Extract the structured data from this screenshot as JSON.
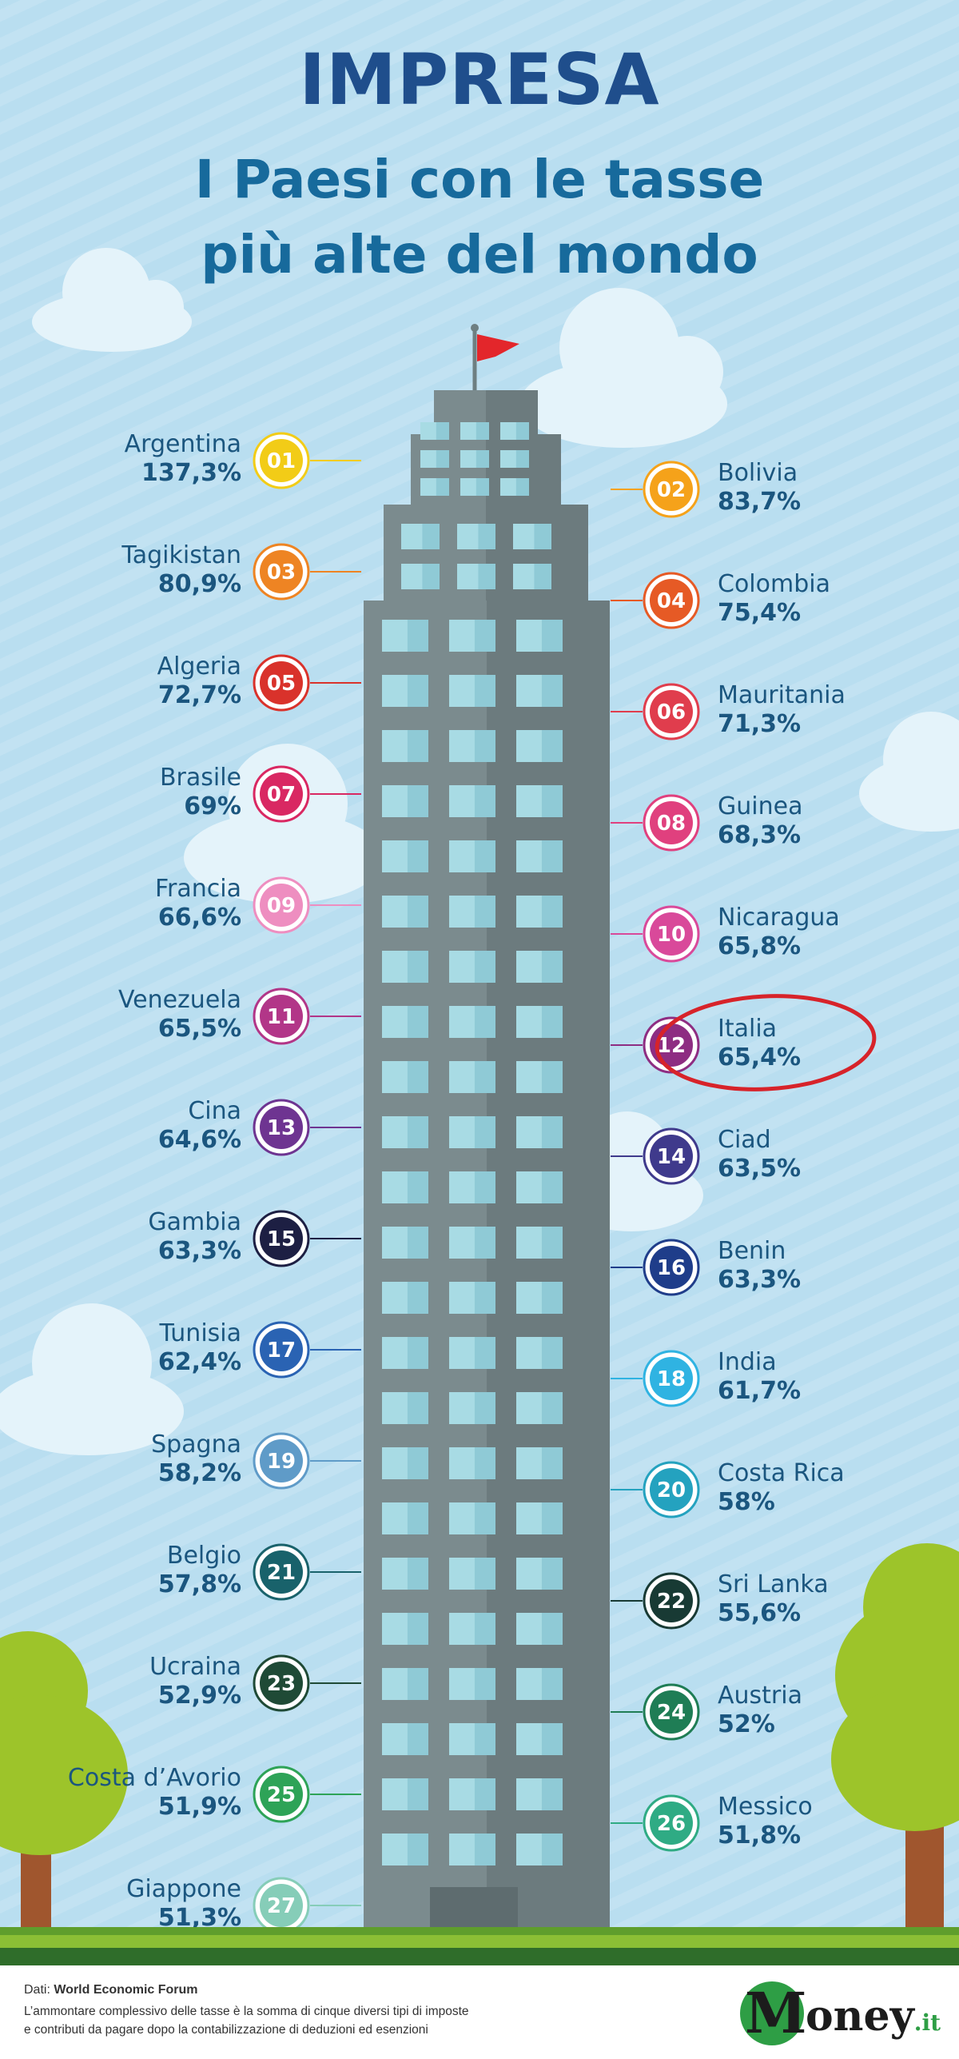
{
  "header": {
    "title": "IMPRESA",
    "subtitle_line1": "I Paesi con le tasse",
    "subtitle_line2": "più alte del mondo"
  },
  "colors": {
    "sky": "#b9def0",
    "title": "#1f4e8c",
    "subtitle": "#176a9c",
    "text": "#1b567f",
    "building": "#7b8b8e",
    "window": "#a8dbe4",
    "highlight_ring": "#d7232a",
    "flag": "#e3262b"
  },
  "chart_data": {
    "type": "table",
    "unit": "%",
    "highlight_rank": 12,
    "rows": [
      {
        "rank": 1,
        "badge": "01",
        "country": "Argentina",
        "value": 137.3,
        "label": "137,3%",
        "color": "#f2cc17"
      },
      {
        "rank": 2,
        "badge": "02",
        "country": "Bolivia",
        "value": 83.7,
        "label": "83,7%",
        "color": "#f5a21a"
      },
      {
        "rank": 3,
        "badge": "03",
        "country": "Tagikistan",
        "value": 80.9,
        "label": "80,9%",
        "color": "#ee8423"
      },
      {
        "rank": 4,
        "badge": "04",
        "country": "Colombia",
        "value": 75.4,
        "label": "75,4%",
        "color": "#e65a25"
      },
      {
        "rank": 5,
        "badge": "05",
        "country": "Algeria",
        "value": 72.7,
        "label": "72,7%",
        "color": "#d9322b"
      },
      {
        "rank": 6,
        "badge": "06",
        "country": "Mauritania",
        "value": 71.3,
        "label": "71,3%",
        "color": "#e03d4d"
      },
      {
        "rank": 7,
        "badge": "07",
        "country": "Brasile",
        "value": 69,
        "label": "69%",
        "color": "#d92862"
      },
      {
        "rank": 8,
        "badge": "08",
        "country": "Guinea",
        "value": 68.3,
        "label": "68,3%",
        "color": "#e0407e"
      },
      {
        "rank": 9,
        "badge": "09",
        "country": "Francia",
        "value": 66.6,
        "label": "66,6%",
        "color": "#ee8ec0"
      },
      {
        "rank": 10,
        "badge": "10",
        "country": "Nicaragua",
        "value": 65.8,
        "label": "65,8%",
        "color": "#d9499a"
      },
      {
        "rank": 11,
        "badge": "11",
        "country": "Venezuela",
        "value": 65.5,
        "label": "65,5%",
        "color": "#b23688"
      },
      {
        "rank": 12,
        "badge": "12",
        "country": "Italia",
        "value": 65.4,
        "label": "65,4%",
        "color": "#8e2d82"
      },
      {
        "rank": 13,
        "badge": "13",
        "country": "Cina",
        "value": 64.6,
        "label": "64,6%",
        "color": "#6e3491"
      },
      {
        "rank": 14,
        "badge": "14",
        "country": "Ciad",
        "value": 63.5,
        "label": "63,5%",
        "color": "#3f3a8c"
      },
      {
        "rank": 15,
        "badge": "15",
        "country": "Gambia",
        "value": 63.3,
        "label": "63,3%",
        "color": "#1d1f43"
      },
      {
        "rank": 16,
        "badge": "16",
        "country": "Benin",
        "value": 63.3,
        "label": "63,3%",
        "color": "#1f3d8a"
      },
      {
        "rank": 17,
        "badge": "17",
        "country": "Tunisia",
        "value": 62.4,
        "label": "62,4%",
        "color": "#2a63b3"
      },
      {
        "rank": 18,
        "badge": "18",
        "country": "India",
        "value": 61.7,
        "label": "61,7%",
        "color": "#2fb3e2"
      },
      {
        "rank": 19,
        "badge": "19",
        "country": "Spagna",
        "value": 58.2,
        "label": "58,2%",
        "color": "#5f9bc8"
      },
      {
        "rank": 20,
        "badge": "20",
        "country": "Costa Rica",
        "value": 58,
        "label": "58%",
        "color": "#24a2bf"
      },
      {
        "rank": 21,
        "badge": "21",
        "country": "Belgio",
        "value": 57.8,
        "label": "57,8%",
        "color": "#19626b"
      },
      {
        "rank": 22,
        "badge": "22",
        "country": "Sri Lanka",
        "value": 55.6,
        "label": "55,6%",
        "color": "#183a34"
      },
      {
        "rank": 23,
        "badge": "23",
        "country": "Ucraina",
        "value": 52.9,
        "label": "52,9%",
        "color": "#1f4a36"
      },
      {
        "rank": 24,
        "badge": "24",
        "country": "Austria",
        "value": 52,
        "label": "52%",
        "color": "#1f7d55"
      },
      {
        "rank": 25,
        "badge": "25",
        "country": "Costa d’Avorio",
        "value": 51.9,
        "label": "51,9%",
        "color": "#2ea357"
      },
      {
        "rank": 26,
        "badge": "26",
        "country": "Messico",
        "value": 51.8,
        "label": "51,8%",
        "color": "#2fab84"
      },
      {
        "rank": 27,
        "badge": "27",
        "country": "Giappone",
        "value": 51.3,
        "label": "51,3%",
        "color": "#86cdb8"
      }
    ]
  },
  "footer": {
    "source_label": "Dati:",
    "source_name": "World Economic Forum",
    "note_line1": "L’ammontare complessivo delle tasse è la somma di cinque diversi tipi di imposte",
    "note_line2": "e contributi da pagare dopo la contabilizzazione di deduzioni ed esenzioni",
    "logo_letter": "M",
    "logo_word": "oney",
    "logo_suffix": ".it"
  }
}
